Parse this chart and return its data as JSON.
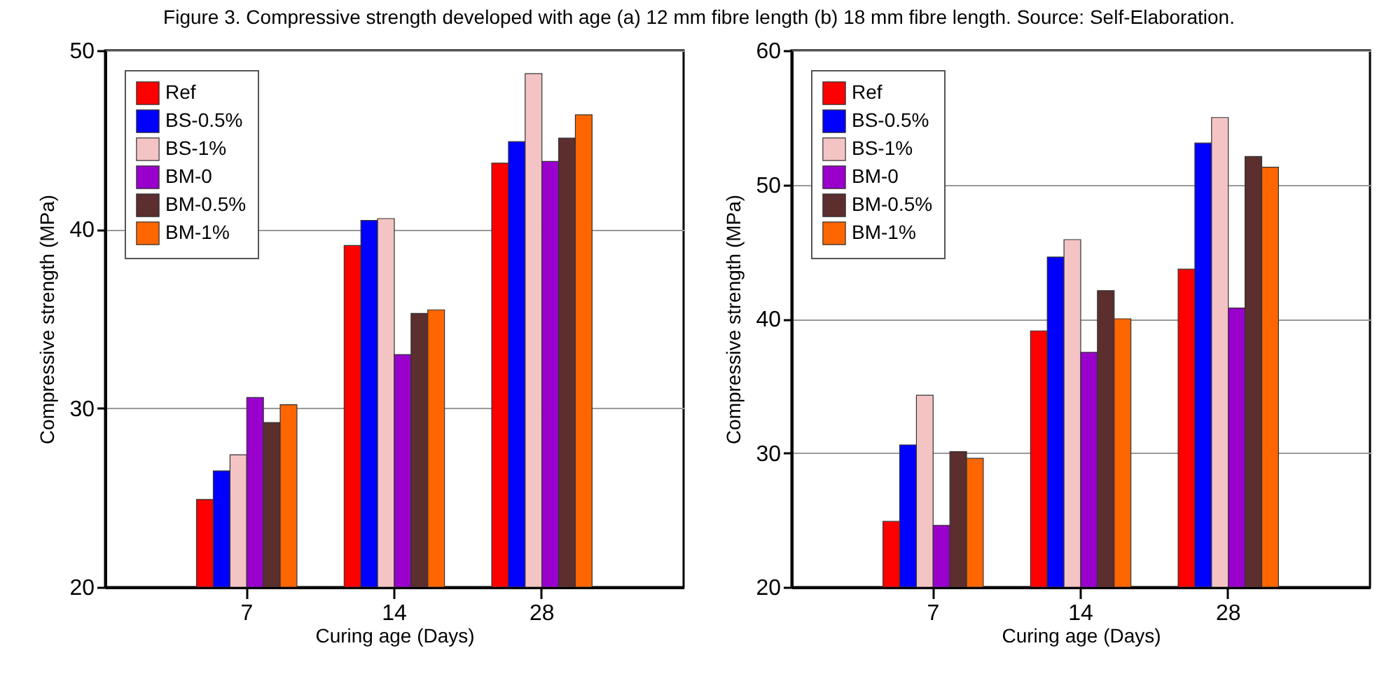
{
  "chart_data": [
    {
      "type": "bar",
      "title": "Figure 3. Compressive strength developed with age (a) 12 mm fibre length (b) 18 mm fibre length. Source: Self-Elaboration.",
      "xlabel": "Curing age (Days)",
      "ylabel": "Compressive strength (MPa)",
      "categories": [
        "7",
        "14",
        "28"
      ],
      "ylim": [
        20,
        50
      ],
      "yticks": [
        20,
        30,
        40,
        50
      ],
      "grid": "y",
      "legend": "top left",
      "series": [
        {
          "name": "Ref",
          "color": "#ff0000",
          "values": [
            24.9,
            39.1,
            43.7
          ]
        },
        {
          "name": "BS-0.5%",
          "color": "#0000ff",
          "values": [
            26.5,
            40.5,
            44.9
          ]
        },
        {
          "name": "BS-1%",
          "color": "#f4c4c4",
          "values": [
            27.4,
            40.6,
            48.7
          ]
        },
        {
          "name": "BM-0",
          "color": "#9900cc",
          "values": [
            30.6,
            33.0,
            43.8
          ]
        },
        {
          "name": "BM-0.5%",
          "color": "#5c2e2e",
          "values": [
            29.2,
            35.3,
            45.1
          ]
        },
        {
          "name": "BM-1%",
          "color": "#ff6600",
          "values": [
            30.2,
            35.5,
            46.4
          ]
        }
      ]
    },
    {
      "type": "bar",
      "xlabel": "Curing age (Days)",
      "ylabel": "Compressive strength (MPa)",
      "categories": [
        "7",
        "14",
        "28"
      ],
      "ylim": [
        20,
        60
      ],
      "yticks": [
        20,
        30,
        40,
        50,
        60
      ],
      "grid": "y",
      "legend": "top left",
      "series": [
        {
          "name": "Ref",
          "color": "#ff0000",
          "values": [
            24.9,
            39.1,
            43.7
          ]
        },
        {
          "name": "BS-0.5%",
          "color": "#0000ff",
          "values": [
            30.6,
            44.6,
            53.1
          ]
        },
        {
          "name": "BS-1%",
          "color": "#f4c4c4",
          "values": [
            34.3,
            45.9,
            55.0
          ]
        },
        {
          "name": "BM-0",
          "color": "#9900cc",
          "values": [
            24.6,
            37.5,
            40.8
          ]
        },
        {
          "name": "BM-0.5%",
          "color": "#5c2e2e",
          "values": [
            30.1,
            42.1,
            52.1
          ]
        },
        {
          "name": "BM-1%",
          "color": "#ff6600",
          "values": [
            29.6,
            40.0,
            51.3
          ]
        }
      ]
    }
  ]
}
